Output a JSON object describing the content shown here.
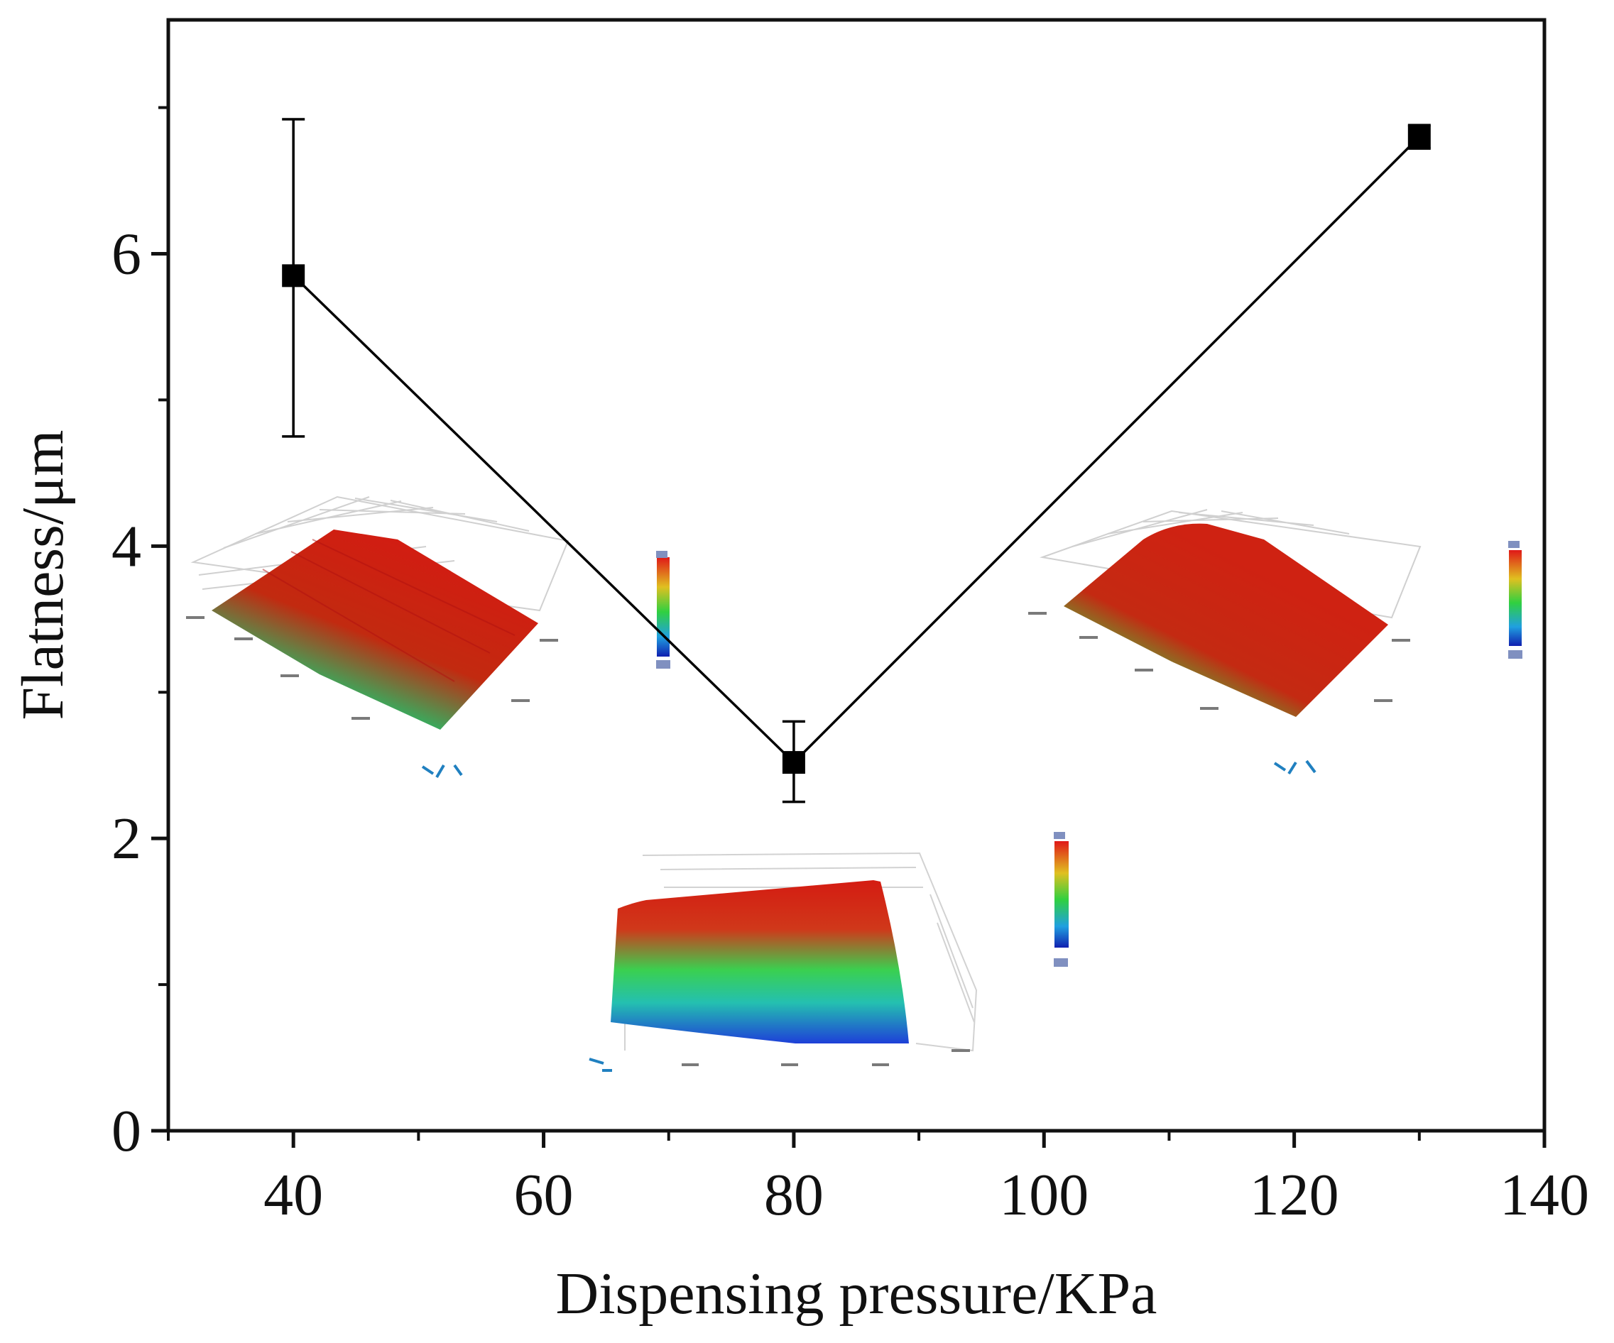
{
  "chart_data": {
    "type": "scatter",
    "xlabel": "Dispensing pressure/KPa",
    "ylabel": "Flatness/μm",
    "xlim": [
      30,
      140
    ],
    "ylim": [
      0,
      7.6
    ],
    "x_ticks": [
      40,
      60,
      80,
      100,
      120,
      140
    ],
    "y_ticks": [
      0,
      2,
      4,
      6
    ],
    "grid": false,
    "series": [
      {
        "marker": "square",
        "color": "#000000",
        "connected": true,
        "points": [
          {
            "x": 40,
            "y": 5.85,
            "err_low": 4.75,
            "err_high": 6.92
          },
          {
            "x": 80,
            "y": 2.52,
            "err_low": 2.25,
            "err_high": 2.8
          },
          {
            "x": 130,
            "y": 6.8,
            "err_low": 6.72,
            "err_high": 6.88
          }
        ]
      }
    ],
    "insets": [
      {
        "name": "surface-map-40kpa",
        "colormap": [
          "#1030b0",
          "#20c060",
          "#c01010"
        ]
      },
      {
        "name": "surface-map-80kpa",
        "colormap": [
          "#1030b0",
          "#20c060",
          "#c01010"
        ]
      },
      {
        "name": "surface-map-130kpa",
        "colormap": [
          "#1030b0",
          "#20c060",
          "#c01010"
        ]
      }
    ]
  }
}
